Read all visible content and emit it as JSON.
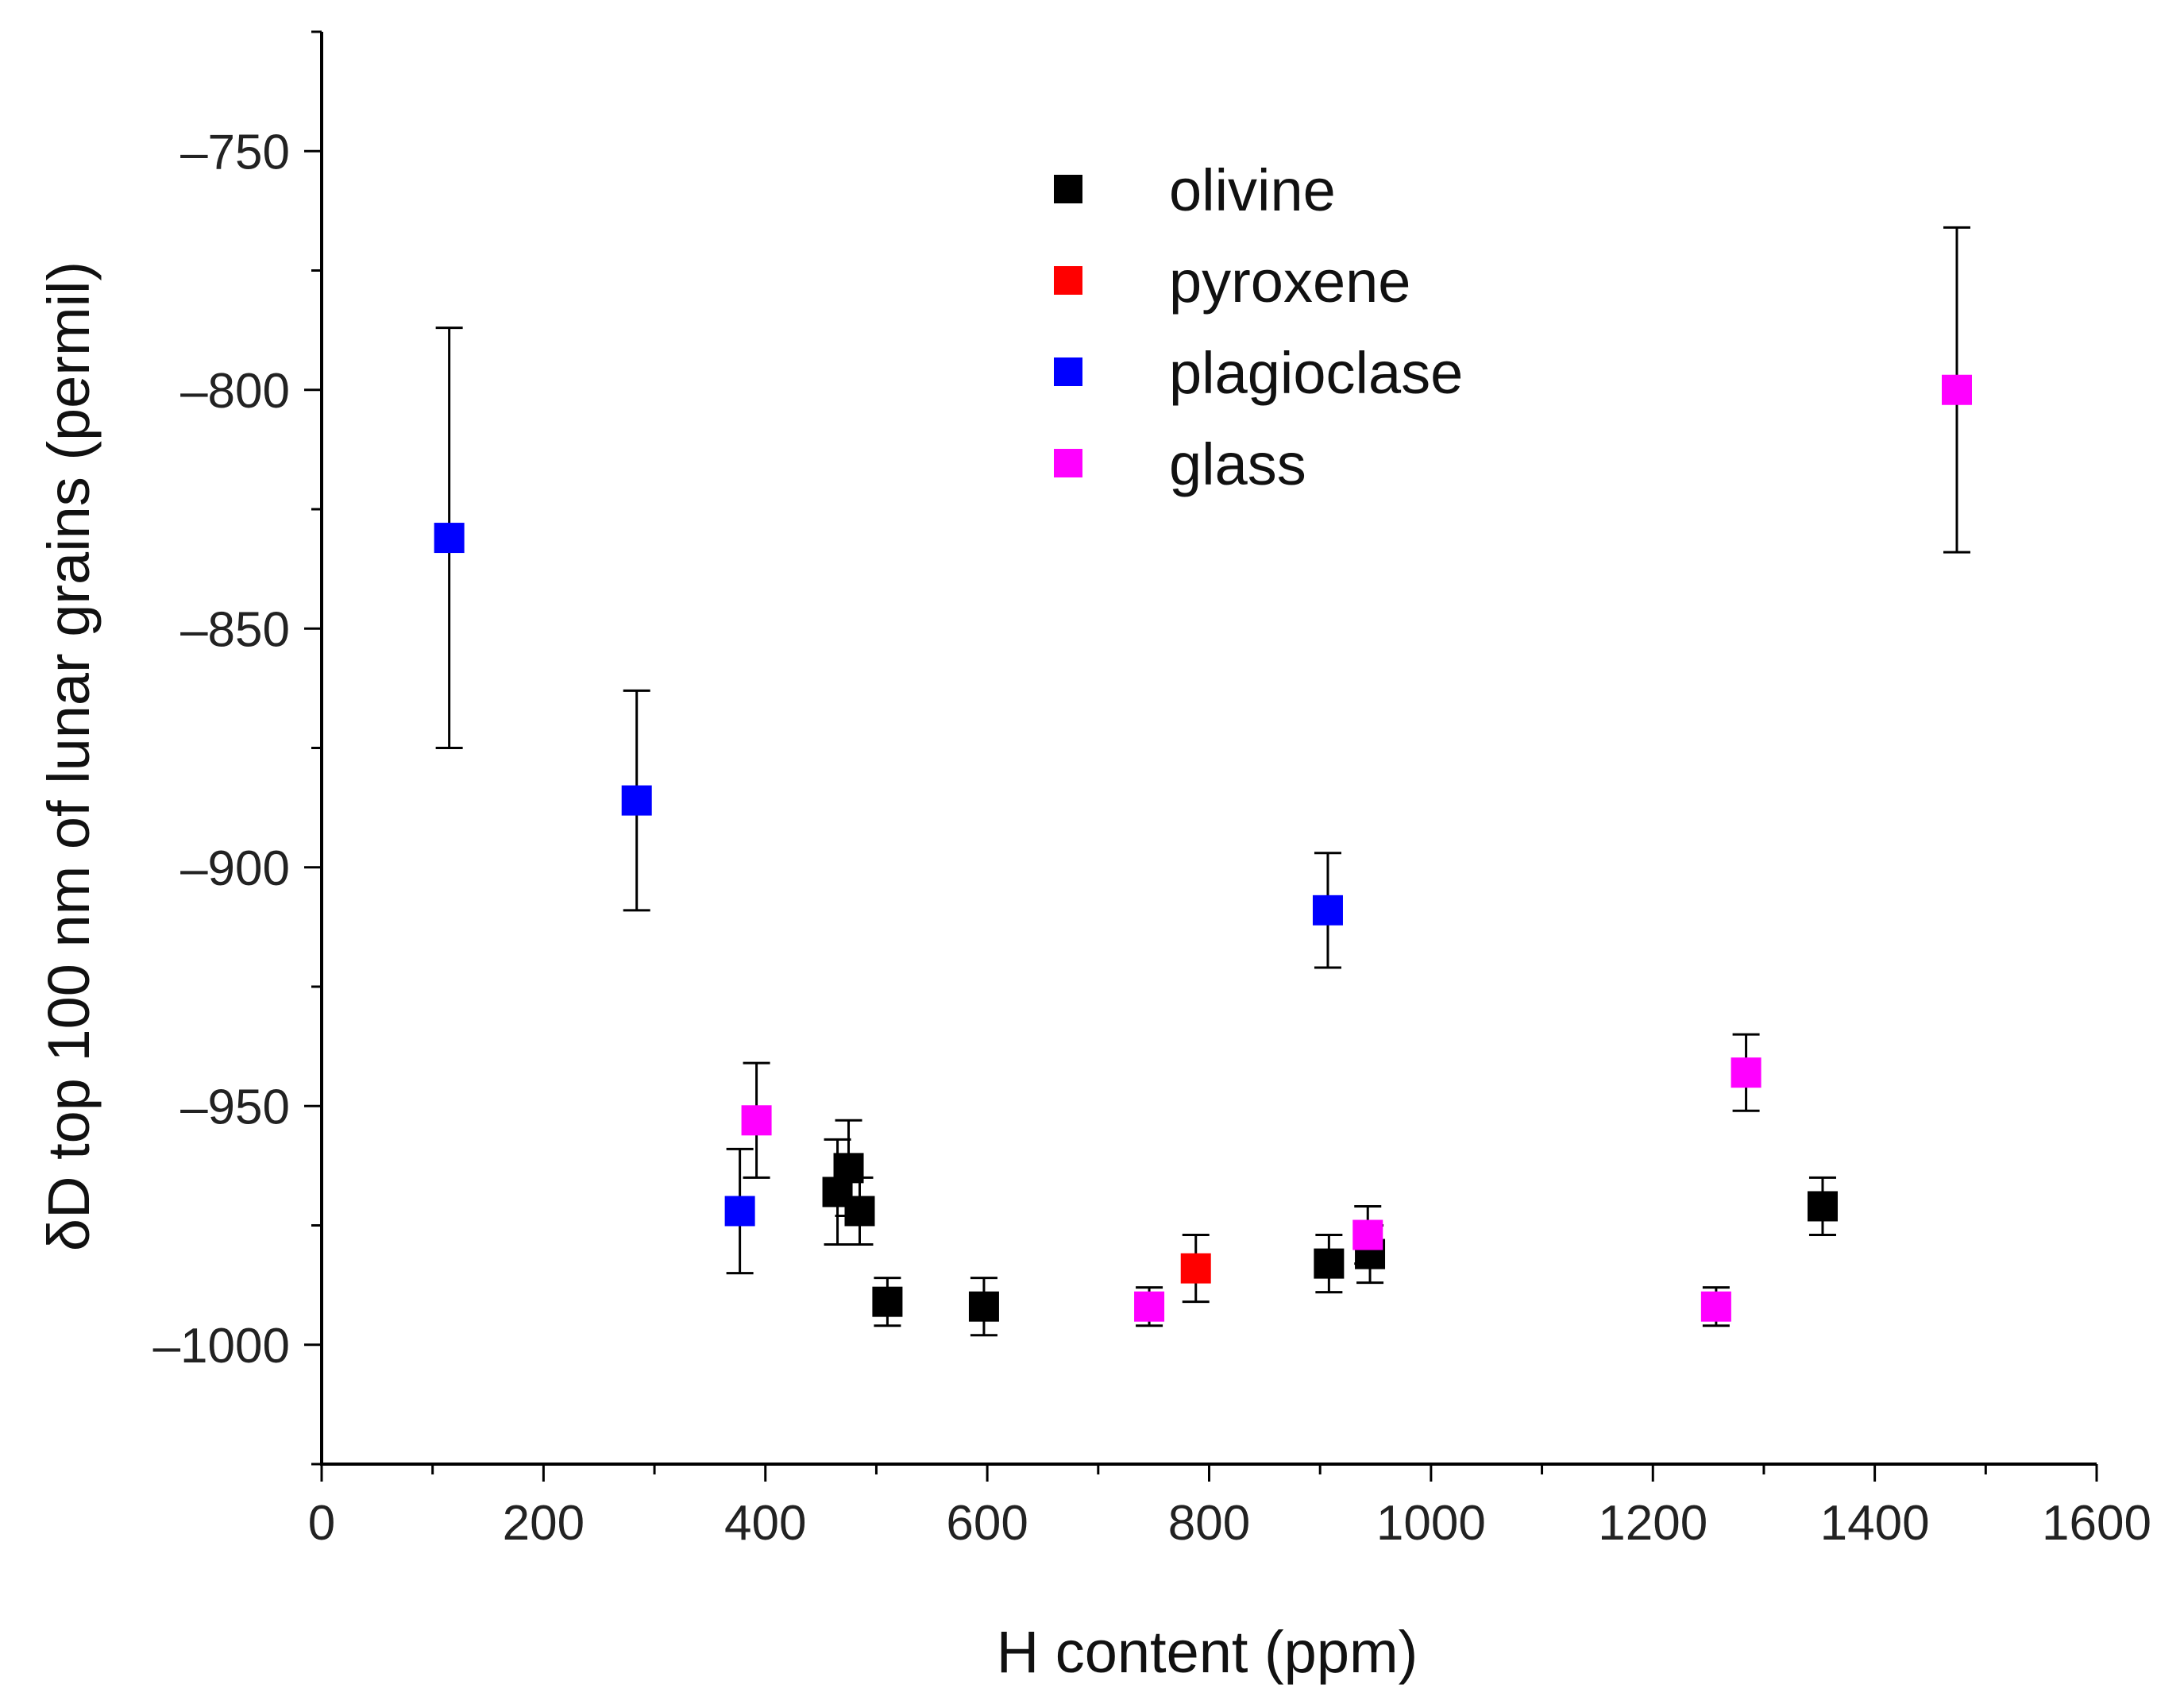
{
  "chart_data": {
    "type": "scatter",
    "title": "",
    "xlabel": "H content (ppm)",
    "ylabel": "δD top 100 nm of lunar grains (permil)",
    "xlim": [
      0,
      1600
    ],
    "ylim": [
      -1025,
      -725
    ],
    "xticks": [
      0,
      200,
      400,
      600,
      800,
      1000,
      1200,
      1400,
      1600
    ],
    "xtick_labels": [
      "0",
      "200",
      "400",
      "600",
      "800",
      "1000",
      "1200",
      "1400",
      "1600"
    ],
    "yticks": [
      -750,
      -800,
      -850,
      -900,
      -950,
      -1000
    ],
    "ytick_labels": [
      "–750",
      "–800",
      "–850",
      "–900",
      "–950",
      "–1000"
    ],
    "legend_position": "top-center",
    "series": [
      {
        "name": "olivine",
        "color": "#000000",
        "points": [
          {
            "x": 465,
            "y": -968,
            "err": 11
          },
          {
            "x": 475,
            "y": -963,
            "err": 10
          },
          {
            "x": 485,
            "y": -972,
            "err": 7
          },
          {
            "x": 510,
            "y": -991,
            "err": 5
          },
          {
            "x": 597,
            "y": -992,
            "err": 6
          },
          {
            "x": 908,
            "y": -983,
            "err": 6
          },
          {
            "x": 945,
            "y": -981,
            "err": 6
          },
          {
            "x": 1353,
            "y": -971,
            "err": 6
          }
        ]
      },
      {
        "name": "pyroxene",
        "color": "#ff0000",
        "points": [
          {
            "x": 788,
            "y": -984,
            "err": 7
          }
        ]
      },
      {
        "name": "plagioclase",
        "color": "#0000ff",
        "points": [
          {
            "x": 115,
            "y": -831,
            "err": 44
          },
          {
            "x": 284,
            "y": -886,
            "err": 23
          },
          {
            "x": 377,
            "y": -972,
            "err": 13
          },
          {
            "x": 907,
            "y": -909,
            "err": 12
          }
        ]
      },
      {
        "name": "glass",
        "color": "#ff00ff",
        "points": [
          {
            "x": 392,
            "y": -953,
            "err": 12
          },
          {
            "x": 746,
            "y": -992,
            "err": 4
          },
          {
            "x": 943,
            "y": -977,
            "err": 6
          },
          {
            "x": 1257,
            "y": -992,
            "err": 4
          },
          {
            "x": 1284,
            "y": -943,
            "err": 8
          },
          {
            "x": 1474,
            "y": -800,
            "err": 34
          }
        ]
      }
    ]
  }
}
